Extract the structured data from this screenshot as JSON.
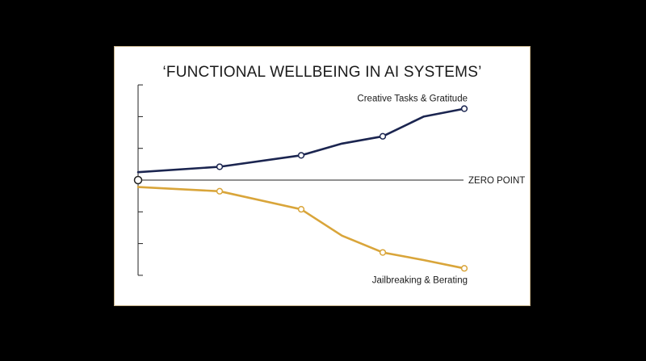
{
  "chart_data": {
    "type": "line",
    "title": "‘FUNCTIONAL WELLBEING IN AI SYSTEMS’",
    "reference_line_label": "ZERO POINT",
    "x": [
      0,
      1,
      2,
      3,
      4,
      5,
      6,
      7
    ],
    "ylim": [
      -3,
      3
    ],
    "grid": false,
    "legend": "inline labels at series ends",
    "series": [
      {
        "name": "Creative Tasks & Gratitude",
        "color": "#1b2550",
        "x": [
          0,
          1,
          2,
          2.5,
          3,
          3.5,
          4
        ],
        "values": [
          0.25,
          0.42,
          0.78,
          1.15,
          1.38,
          2.0,
          2.25
        ],
        "markers": [
          false,
          true,
          true,
          false,
          true,
          false,
          true
        ]
      },
      {
        "name": "Jailbreaking & Berating",
        "color": "#d9a53a",
        "x": [
          0,
          1,
          2,
          2.5,
          3,
          3.5,
          4
        ],
        "values": [
          -0.22,
          -0.35,
          -0.92,
          -1.75,
          -2.28,
          -2.52,
          -2.78
        ],
        "markers": [
          false,
          true,
          true,
          false,
          true,
          false,
          true
        ]
      }
    ]
  }
}
